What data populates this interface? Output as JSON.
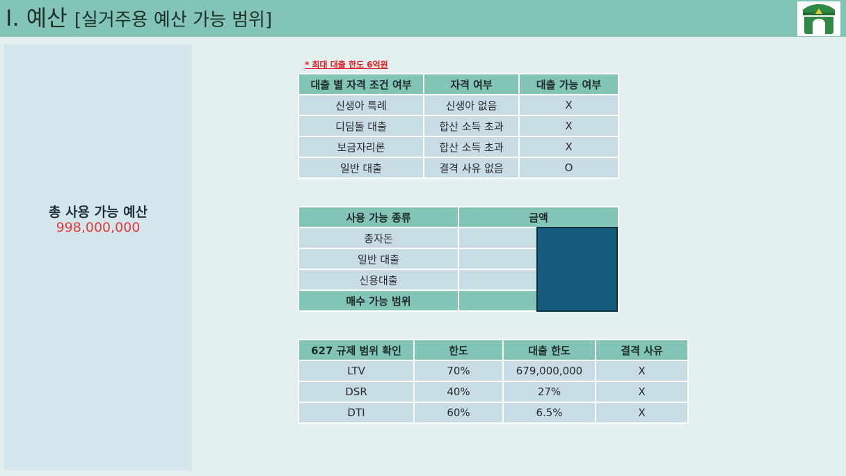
{
  "header": {
    "title": "I. 예산",
    "subtitle": "[실거주용 예산 가능 범위]",
    "logo_icon": "gate-logo-icon"
  },
  "summary": {
    "label": "총 사용 가능 예산",
    "value": "998,000,000"
  },
  "note": "* 최대 대출 한도 6억원",
  "eligibility_table": {
    "headers": [
      "대출 별 자격 조건 여부",
      "자격 여부",
      "대출 가능 여부"
    ],
    "rows": [
      [
        "신생아 특례",
        "신생아 없음",
        "X"
      ],
      [
        "디딤돌 대출",
        "합산 소득 초과",
        "X"
      ],
      [
        "보금자리론",
        "합산 소득 초과",
        "X"
      ],
      [
        "일반 대출",
        "결격 사유 없음",
        "O"
      ]
    ]
  },
  "funds_table": {
    "headers": [
      "사용 가능 종류",
      "금액"
    ],
    "rows": [
      "종자돈",
      "일반 대출",
      "신용대출",
      "매수 가능 범위"
    ]
  },
  "regulation_table": {
    "headers": [
      "627 규제 범위 확인",
      "한도",
      "대출 한도",
      "결격 사유"
    ],
    "rows": [
      [
        "LTV",
        "70%",
        "679,000,000",
        "X"
      ],
      [
        "DSR",
        "40%",
        "27%",
        "X"
      ],
      [
        "DTI",
        "60%",
        "6.5%",
        "X"
      ]
    ]
  },
  "colors": {
    "header_bg": "#82c4b5",
    "cell_bg": "#c7dce4",
    "masked_block": "#165a7c",
    "budget_value": "#e43b3b"
  }
}
